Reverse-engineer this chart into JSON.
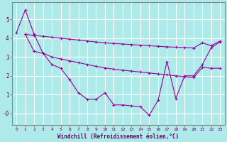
{
  "xlabel": "Windchill (Refroidissement éolien,°C)",
  "background_color": "#aeeaea",
  "grid_color": "#ffffff",
  "line_color": "#990099",
  "spine_color": "#666666",
  "xlim": [
    -0.5,
    23.5
  ],
  "ylim": [
    -0.6,
    5.9
  ],
  "xticks": [
    0,
    1,
    2,
    3,
    4,
    5,
    6,
    7,
    8,
    9,
    10,
    11,
    12,
    13,
    14,
    15,
    16,
    17,
    18,
    19,
    20,
    21,
    22,
    23
  ],
  "yticks": [
    0,
    1,
    2,
    3,
    4,
    5
  ],
  "ytick_labels": [
    "-0",
    "1",
    "2",
    "3",
    "4",
    "5"
  ],
  "line1_x": [
    0,
    1,
    2,
    3,
    4,
    5,
    6,
    7,
    8,
    9,
    10,
    11,
    12,
    13,
    14,
    15,
    16,
    17,
    18,
    19,
    20,
    21,
    22,
    23
  ],
  "line1_y": [
    4.3,
    5.5,
    4.2,
    3.2,
    2.6,
    2.4,
    1.8,
    1.1,
    0.75,
    0.75,
    1.1,
    0.45,
    0.45,
    0.4,
    0.35,
    -0.1,
    0.7,
    2.75,
    0.8,
    2.0,
    2.0,
    2.6,
    3.5,
    3.8
  ],
  "line2_x": [
    1,
    2,
    3,
    4,
    5,
    6,
    7,
    8,
    9,
    10,
    11,
    12,
    13,
    14,
    15,
    16,
    17,
    18,
    19,
    20,
    21,
    22,
    23
  ],
  "line2_y": [
    4.2,
    4.15,
    4.1,
    4.05,
    4.0,
    3.95,
    3.9,
    3.85,
    3.8,
    3.75,
    3.72,
    3.69,
    3.66,
    3.63,
    3.6,
    3.57,
    3.54,
    3.52,
    3.5,
    3.48,
    3.75,
    3.6,
    3.85
  ],
  "line3_x": [
    1,
    2,
    3,
    4,
    5,
    6,
    7,
    8,
    9,
    10,
    11,
    12,
    13,
    14,
    15,
    16,
    17,
    18,
    19,
    20,
    21,
    22,
    23
  ],
  "line3_y": [
    4.2,
    3.3,
    3.2,
    3.0,
    2.9,
    2.8,
    2.7,
    2.6,
    2.5,
    2.42,
    2.35,
    2.3,
    2.25,
    2.2,
    2.15,
    2.1,
    2.05,
    2.0,
    1.95,
    1.9,
    2.45,
    2.4,
    2.4
  ]
}
